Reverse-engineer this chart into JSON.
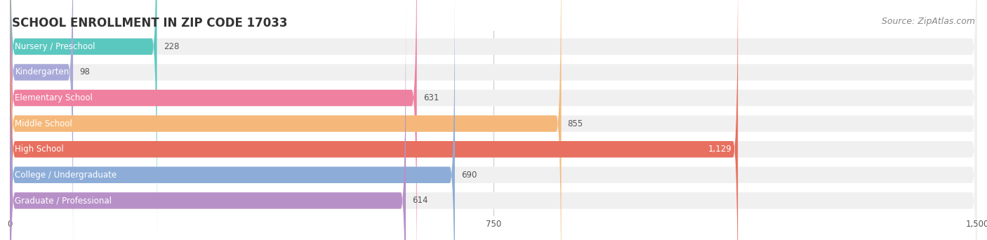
{
  "title": "SCHOOL ENROLLMENT IN ZIP CODE 17033",
  "source": "Source: ZipAtlas.com",
  "categories": [
    "Nursery / Preschool",
    "Kindergarten",
    "Elementary School",
    "Middle School",
    "High School",
    "College / Undergraduate",
    "Graduate / Professional"
  ],
  "values": [
    228,
    98,
    631,
    855,
    1129,
    690,
    614
  ],
  "bar_colors": [
    "#5bc8c0",
    "#a9a9d9",
    "#f080a0",
    "#f5b87a",
    "#e87060",
    "#8dadd8",
    "#b890c8"
  ],
  "bar_bg_color": "#f0f0f0",
  "value_label_color_inside": "#ffffff",
  "value_label_color_outside": "#555555",
  "xlim": [
    0,
    1500
  ],
  "xticks": [
    0,
    750,
    1500
  ],
  "title_fontsize": 12,
  "source_fontsize": 9,
  "label_fontsize": 8.5,
  "value_fontsize": 8.5,
  "background_color": "#ffffff",
  "bar_height": 0.62,
  "inside_label_threshold": 1000
}
